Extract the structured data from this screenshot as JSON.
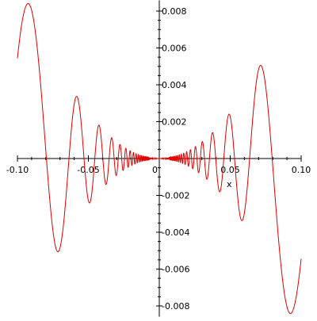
{
  "chart_data": {
    "type": "line",
    "title": "",
    "xlabel": "x",
    "ylabel": "",
    "xlim": [
      -0.1,
      0.1
    ],
    "ylim": [
      -0.0085,
      0.0085
    ],
    "grid": false,
    "x_ticks": [
      {
        "value": -0.1,
        "label": "-0.10"
      },
      {
        "value": -0.05,
        "label": "-0.05"
      },
      {
        "value": 0,
        "label": "0"
      },
      {
        "value": 0.05,
        "label": "0.05"
      },
      {
        "value": 0.1,
        "label": "0.10"
      }
    ],
    "y_ticks": [
      {
        "value": 0.008,
        "label": "0.008"
      },
      {
        "value": 0.006,
        "label": "0.006"
      },
      {
        "value": 0.004,
        "label": "0.004"
      },
      {
        "value": 0.002,
        "label": "0.002"
      },
      {
        "value": -0.002,
        "label": "-0.002"
      },
      {
        "value": -0.004,
        "label": "-0.004"
      },
      {
        "value": -0.006,
        "label": "-0.006"
      },
      {
        "value": -0.008,
        "label": "-0.008"
      }
    ],
    "series": [
      {
        "color": "#e00000",
        "function": "x^2*sin(1/x)",
        "x": [
          -0.1,
          -0.093,
          -0.086,
          -0.08,
          -0.076,
          -0.072,
          -0.067,
          -0.063,
          -0.06,
          -0.056,
          -0.053,
          -0.049,
          -0.046,
          -0.043,
          -0.04,
          -0.036,
          -0.033,
          -0.03,
          -0.027,
          -0.023,
          -0.02,
          -0.015,
          -0.01,
          0,
          0.01,
          0.015,
          0.02,
          0.023,
          0.027,
          0.03,
          0.033,
          0.036,
          0.04,
          0.043,
          0.046,
          0.049,
          0.053,
          0.056,
          0.06,
          0.063,
          0.067,
          0.072,
          0.076,
          0.08,
          0.086,
          0.093,
          0.1
        ],
        "y": [
          0.0054,
          0.0084,
          0.0056,
          0.0,
          -0.0049,
          -0.0051,
          -0.0012,
          0.0028,
          0.0033,
          0.0012,
          -0.0021,
          -0.0023,
          -0.0001,
          0.0017,
          0.0012,
          -0.0011,
          -0.001,
          0.0007,
          0.0007,
          -0.0005,
          -0.0002,
          0.0001,
          0.0,
          0.0,
          0.0,
          -0.0001,
          0.0002,
          0.0005,
          -0.0007,
          -0.0007,
          0.001,
          0.0011,
          -0.0012,
          -0.0017,
          0.0001,
          0.0023,
          0.0021,
          -0.0012,
          -0.0033,
          -0.0028,
          0.0012,
          0.0051,
          0.0049,
          0.0,
          -0.0056,
          -0.0084,
          -0.0054
        ]
      }
    ]
  }
}
